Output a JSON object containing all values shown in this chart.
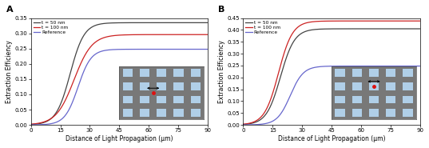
{
  "panel_A": {
    "label": "A",
    "ylim": [
      0,
      0.35
    ],
    "yticks": [
      0.0,
      0.05,
      0.1,
      0.15,
      0.2,
      0.25,
      0.3,
      0.35
    ],
    "curves": [
      {
        "name": "t = 50 nm",
        "color": "#444444",
        "x0": 20,
        "k": 0.28,
        "ymax": 0.335
      },
      {
        "name": "t = 100 nm",
        "color": "#cc2222",
        "x0": 22,
        "k": 0.22,
        "ymax": 0.296
      },
      {
        "name": "Reference",
        "color": "#6666cc",
        "x0": 24,
        "k": 0.3,
        "ymax": 0.248
      }
    ]
  },
  "panel_B": {
    "label": "B",
    "ylim": [
      0,
      0.45
    ],
    "yticks": [
      0.0,
      0.05,
      0.1,
      0.15,
      0.2,
      0.25,
      0.3,
      0.35,
      0.4,
      0.45
    ],
    "curves": [
      {
        "name": "t = 50 nm",
        "color": "#444444",
        "x0": 19,
        "k": 0.28,
        "ymax": 0.405
      },
      {
        "name": "t = 100 nm",
        "color": "#cc2222",
        "x0": 18,
        "k": 0.28,
        "ymax": 0.438
      },
      {
        "name": "Reference",
        "color": "#6666cc",
        "x0": 24,
        "k": 0.3,
        "ymax": 0.248
      }
    ]
  },
  "xlim": [
    0,
    90
  ],
  "xticks": [
    0,
    15,
    30,
    45,
    60,
    75,
    90
  ],
  "xlabel": "Distance of Light Propagation (μm)",
  "ylabel": "Extraction Efficiency",
  "inset_bg_color": "#b0cfe8",
  "inset_wire_color": "#787878",
  "inset_dot_color": "#dd1111"
}
